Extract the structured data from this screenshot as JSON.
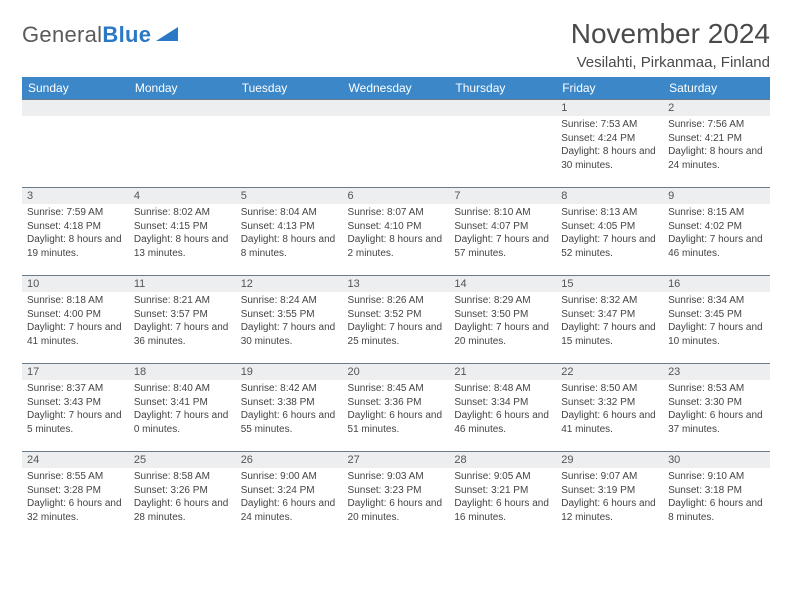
{
  "logo": {
    "word1": "General",
    "word2": "Blue",
    "shape_color": "#2b78c4",
    "text_color": "#5a5a5a"
  },
  "title": "November 2024",
  "location": "Vesilahti, Pirkanmaa, Finland",
  "header_bg": "#3b87c8",
  "daynum_bg": "#eceef0",
  "week_days": [
    "Sunday",
    "Monday",
    "Tuesday",
    "Wednesday",
    "Thursday",
    "Friday",
    "Saturday"
  ],
  "weeks": [
    [
      null,
      null,
      null,
      null,
      null,
      {
        "n": "1",
        "sunrise": "Sunrise: 7:53 AM",
        "sunset": "Sunset: 4:24 PM",
        "day": "Daylight: 8 hours and 30 minutes."
      },
      {
        "n": "2",
        "sunrise": "Sunrise: 7:56 AM",
        "sunset": "Sunset: 4:21 PM",
        "day": "Daylight: 8 hours and 24 minutes."
      }
    ],
    [
      {
        "n": "3",
        "sunrise": "Sunrise: 7:59 AM",
        "sunset": "Sunset: 4:18 PM",
        "day": "Daylight: 8 hours and 19 minutes."
      },
      {
        "n": "4",
        "sunrise": "Sunrise: 8:02 AM",
        "sunset": "Sunset: 4:15 PM",
        "day": "Daylight: 8 hours and 13 minutes."
      },
      {
        "n": "5",
        "sunrise": "Sunrise: 8:04 AM",
        "sunset": "Sunset: 4:13 PM",
        "day": "Daylight: 8 hours and 8 minutes."
      },
      {
        "n": "6",
        "sunrise": "Sunrise: 8:07 AM",
        "sunset": "Sunset: 4:10 PM",
        "day": "Daylight: 8 hours and 2 minutes."
      },
      {
        "n": "7",
        "sunrise": "Sunrise: 8:10 AM",
        "sunset": "Sunset: 4:07 PM",
        "day": "Daylight: 7 hours and 57 minutes."
      },
      {
        "n": "8",
        "sunrise": "Sunrise: 8:13 AM",
        "sunset": "Sunset: 4:05 PM",
        "day": "Daylight: 7 hours and 52 minutes."
      },
      {
        "n": "9",
        "sunrise": "Sunrise: 8:15 AM",
        "sunset": "Sunset: 4:02 PM",
        "day": "Daylight: 7 hours and 46 minutes."
      }
    ],
    [
      {
        "n": "10",
        "sunrise": "Sunrise: 8:18 AM",
        "sunset": "Sunset: 4:00 PM",
        "day": "Daylight: 7 hours and 41 minutes."
      },
      {
        "n": "11",
        "sunrise": "Sunrise: 8:21 AM",
        "sunset": "Sunset: 3:57 PM",
        "day": "Daylight: 7 hours and 36 minutes."
      },
      {
        "n": "12",
        "sunrise": "Sunrise: 8:24 AM",
        "sunset": "Sunset: 3:55 PM",
        "day": "Daylight: 7 hours and 30 minutes."
      },
      {
        "n": "13",
        "sunrise": "Sunrise: 8:26 AM",
        "sunset": "Sunset: 3:52 PM",
        "day": "Daylight: 7 hours and 25 minutes."
      },
      {
        "n": "14",
        "sunrise": "Sunrise: 8:29 AM",
        "sunset": "Sunset: 3:50 PM",
        "day": "Daylight: 7 hours and 20 minutes."
      },
      {
        "n": "15",
        "sunrise": "Sunrise: 8:32 AM",
        "sunset": "Sunset: 3:47 PM",
        "day": "Daylight: 7 hours and 15 minutes."
      },
      {
        "n": "16",
        "sunrise": "Sunrise: 8:34 AM",
        "sunset": "Sunset: 3:45 PM",
        "day": "Daylight: 7 hours and 10 minutes."
      }
    ],
    [
      {
        "n": "17",
        "sunrise": "Sunrise: 8:37 AM",
        "sunset": "Sunset: 3:43 PM",
        "day": "Daylight: 7 hours and 5 minutes."
      },
      {
        "n": "18",
        "sunrise": "Sunrise: 8:40 AM",
        "sunset": "Sunset: 3:41 PM",
        "day": "Daylight: 7 hours and 0 minutes."
      },
      {
        "n": "19",
        "sunrise": "Sunrise: 8:42 AM",
        "sunset": "Sunset: 3:38 PM",
        "day": "Daylight: 6 hours and 55 minutes."
      },
      {
        "n": "20",
        "sunrise": "Sunrise: 8:45 AM",
        "sunset": "Sunset: 3:36 PM",
        "day": "Daylight: 6 hours and 51 minutes."
      },
      {
        "n": "21",
        "sunrise": "Sunrise: 8:48 AM",
        "sunset": "Sunset: 3:34 PM",
        "day": "Daylight: 6 hours and 46 minutes."
      },
      {
        "n": "22",
        "sunrise": "Sunrise: 8:50 AM",
        "sunset": "Sunset: 3:32 PM",
        "day": "Daylight: 6 hours and 41 minutes."
      },
      {
        "n": "23",
        "sunrise": "Sunrise: 8:53 AM",
        "sunset": "Sunset: 3:30 PM",
        "day": "Daylight: 6 hours and 37 minutes."
      }
    ],
    [
      {
        "n": "24",
        "sunrise": "Sunrise: 8:55 AM",
        "sunset": "Sunset: 3:28 PM",
        "day": "Daylight: 6 hours and 32 minutes."
      },
      {
        "n": "25",
        "sunrise": "Sunrise: 8:58 AM",
        "sunset": "Sunset: 3:26 PM",
        "day": "Daylight: 6 hours and 28 minutes."
      },
      {
        "n": "26",
        "sunrise": "Sunrise: 9:00 AM",
        "sunset": "Sunset: 3:24 PM",
        "day": "Daylight: 6 hours and 24 minutes."
      },
      {
        "n": "27",
        "sunrise": "Sunrise: 9:03 AM",
        "sunset": "Sunset: 3:23 PM",
        "day": "Daylight: 6 hours and 20 minutes."
      },
      {
        "n": "28",
        "sunrise": "Sunrise: 9:05 AM",
        "sunset": "Sunset: 3:21 PM",
        "day": "Daylight: 6 hours and 16 minutes."
      },
      {
        "n": "29",
        "sunrise": "Sunrise: 9:07 AM",
        "sunset": "Sunset: 3:19 PM",
        "day": "Daylight: 6 hours and 12 minutes."
      },
      {
        "n": "30",
        "sunrise": "Sunrise: 9:10 AM",
        "sunset": "Sunset: 3:18 PM",
        "day": "Daylight: 6 hours and 8 minutes."
      }
    ]
  ]
}
